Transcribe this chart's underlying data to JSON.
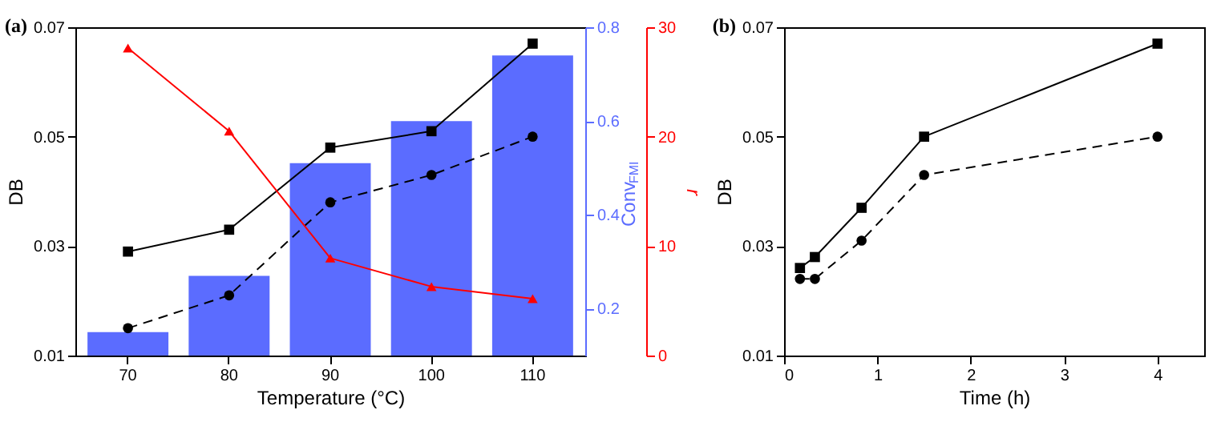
{
  "chart_data": [
    {
      "type": "bar",
      "annotations": [
        "(a)"
      ],
      "xlabel": "Temperature (°C)",
      "ylabel": "DB",
      "y2label": "Conv$_{FMI}$",
      "y3label": "r",
      "categories": [
        "70",
        "80",
        "90",
        "100",
        "110"
      ],
      "series": [
        {
          "type": "bar",
          "axis": "y2",
          "color": "#5b6cff",
          "values": [
            0.15,
            0.27,
            0.51,
            0.6,
            0.74
          ]
        },
        {
          "type": "line",
          "axis": "y",
          "color": "#000000",
          "marker": "square",
          "line_style": "solid",
          "values": [
            0.029,
            0.033,
            0.048,
            0.051,
            0.067
          ]
        },
        {
          "type": "line",
          "axis": "y",
          "color": "#000000",
          "marker": "circle",
          "line_style": "dashed",
          "values": [
            0.015,
            0.021,
            0.038,
            0.043,
            0.05
          ]
        },
        {
          "type": "line",
          "axis": "y3",
          "color": "#ff0000",
          "marker": "triangle",
          "line_style": "solid",
          "values": [
            28.1,
            20.5,
            8.9,
            6.3,
            5.2
          ]
        }
      ],
      "ylim": [
        0.01,
        0.07
      ],
      "yticks": [
        0.01,
        0.03,
        0.05,
        0.07
      ],
      "y2lim": [
        0.1,
        0.8
      ],
      "y2ticks": [
        0.2,
        0.4,
        0.6,
        0.8
      ],
      "y3lim": [
        0,
        30
      ],
      "y3ticks": [
        0,
        10,
        20,
        30
      ],
      "grid": false
    },
    {
      "type": "line",
      "annotations": [
        "(b)"
      ],
      "xlabel": "Time (h)",
      "ylabel": "DB",
      "x": [
        0.17,
        0.33,
        0.83,
        1.5,
        4
      ],
      "series": [
        {
          "color": "#000000",
          "marker": "square",
          "line_style": "solid",
          "values": [
            0.026,
            0.028,
            0.037,
            0.05,
            0.067
          ]
        },
        {
          "color": "#000000",
          "marker": "circle",
          "line_style": "dashed",
          "values": [
            0.024,
            0.024,
            0.031,
            0.043,
            0.05
          ]
        }
      ],
      "xlim": [
        0,
        4.5
      ],
      "xticks": [
        0,
        1,
        2,
        3,
        4
      ],
      "ylim": [
        0.01,
        0.07
      ],
      "yticks": [
        0.01,
        0.03,
        0.05,
        0.07
      ],
      "grid": false
    }
  ]
}
